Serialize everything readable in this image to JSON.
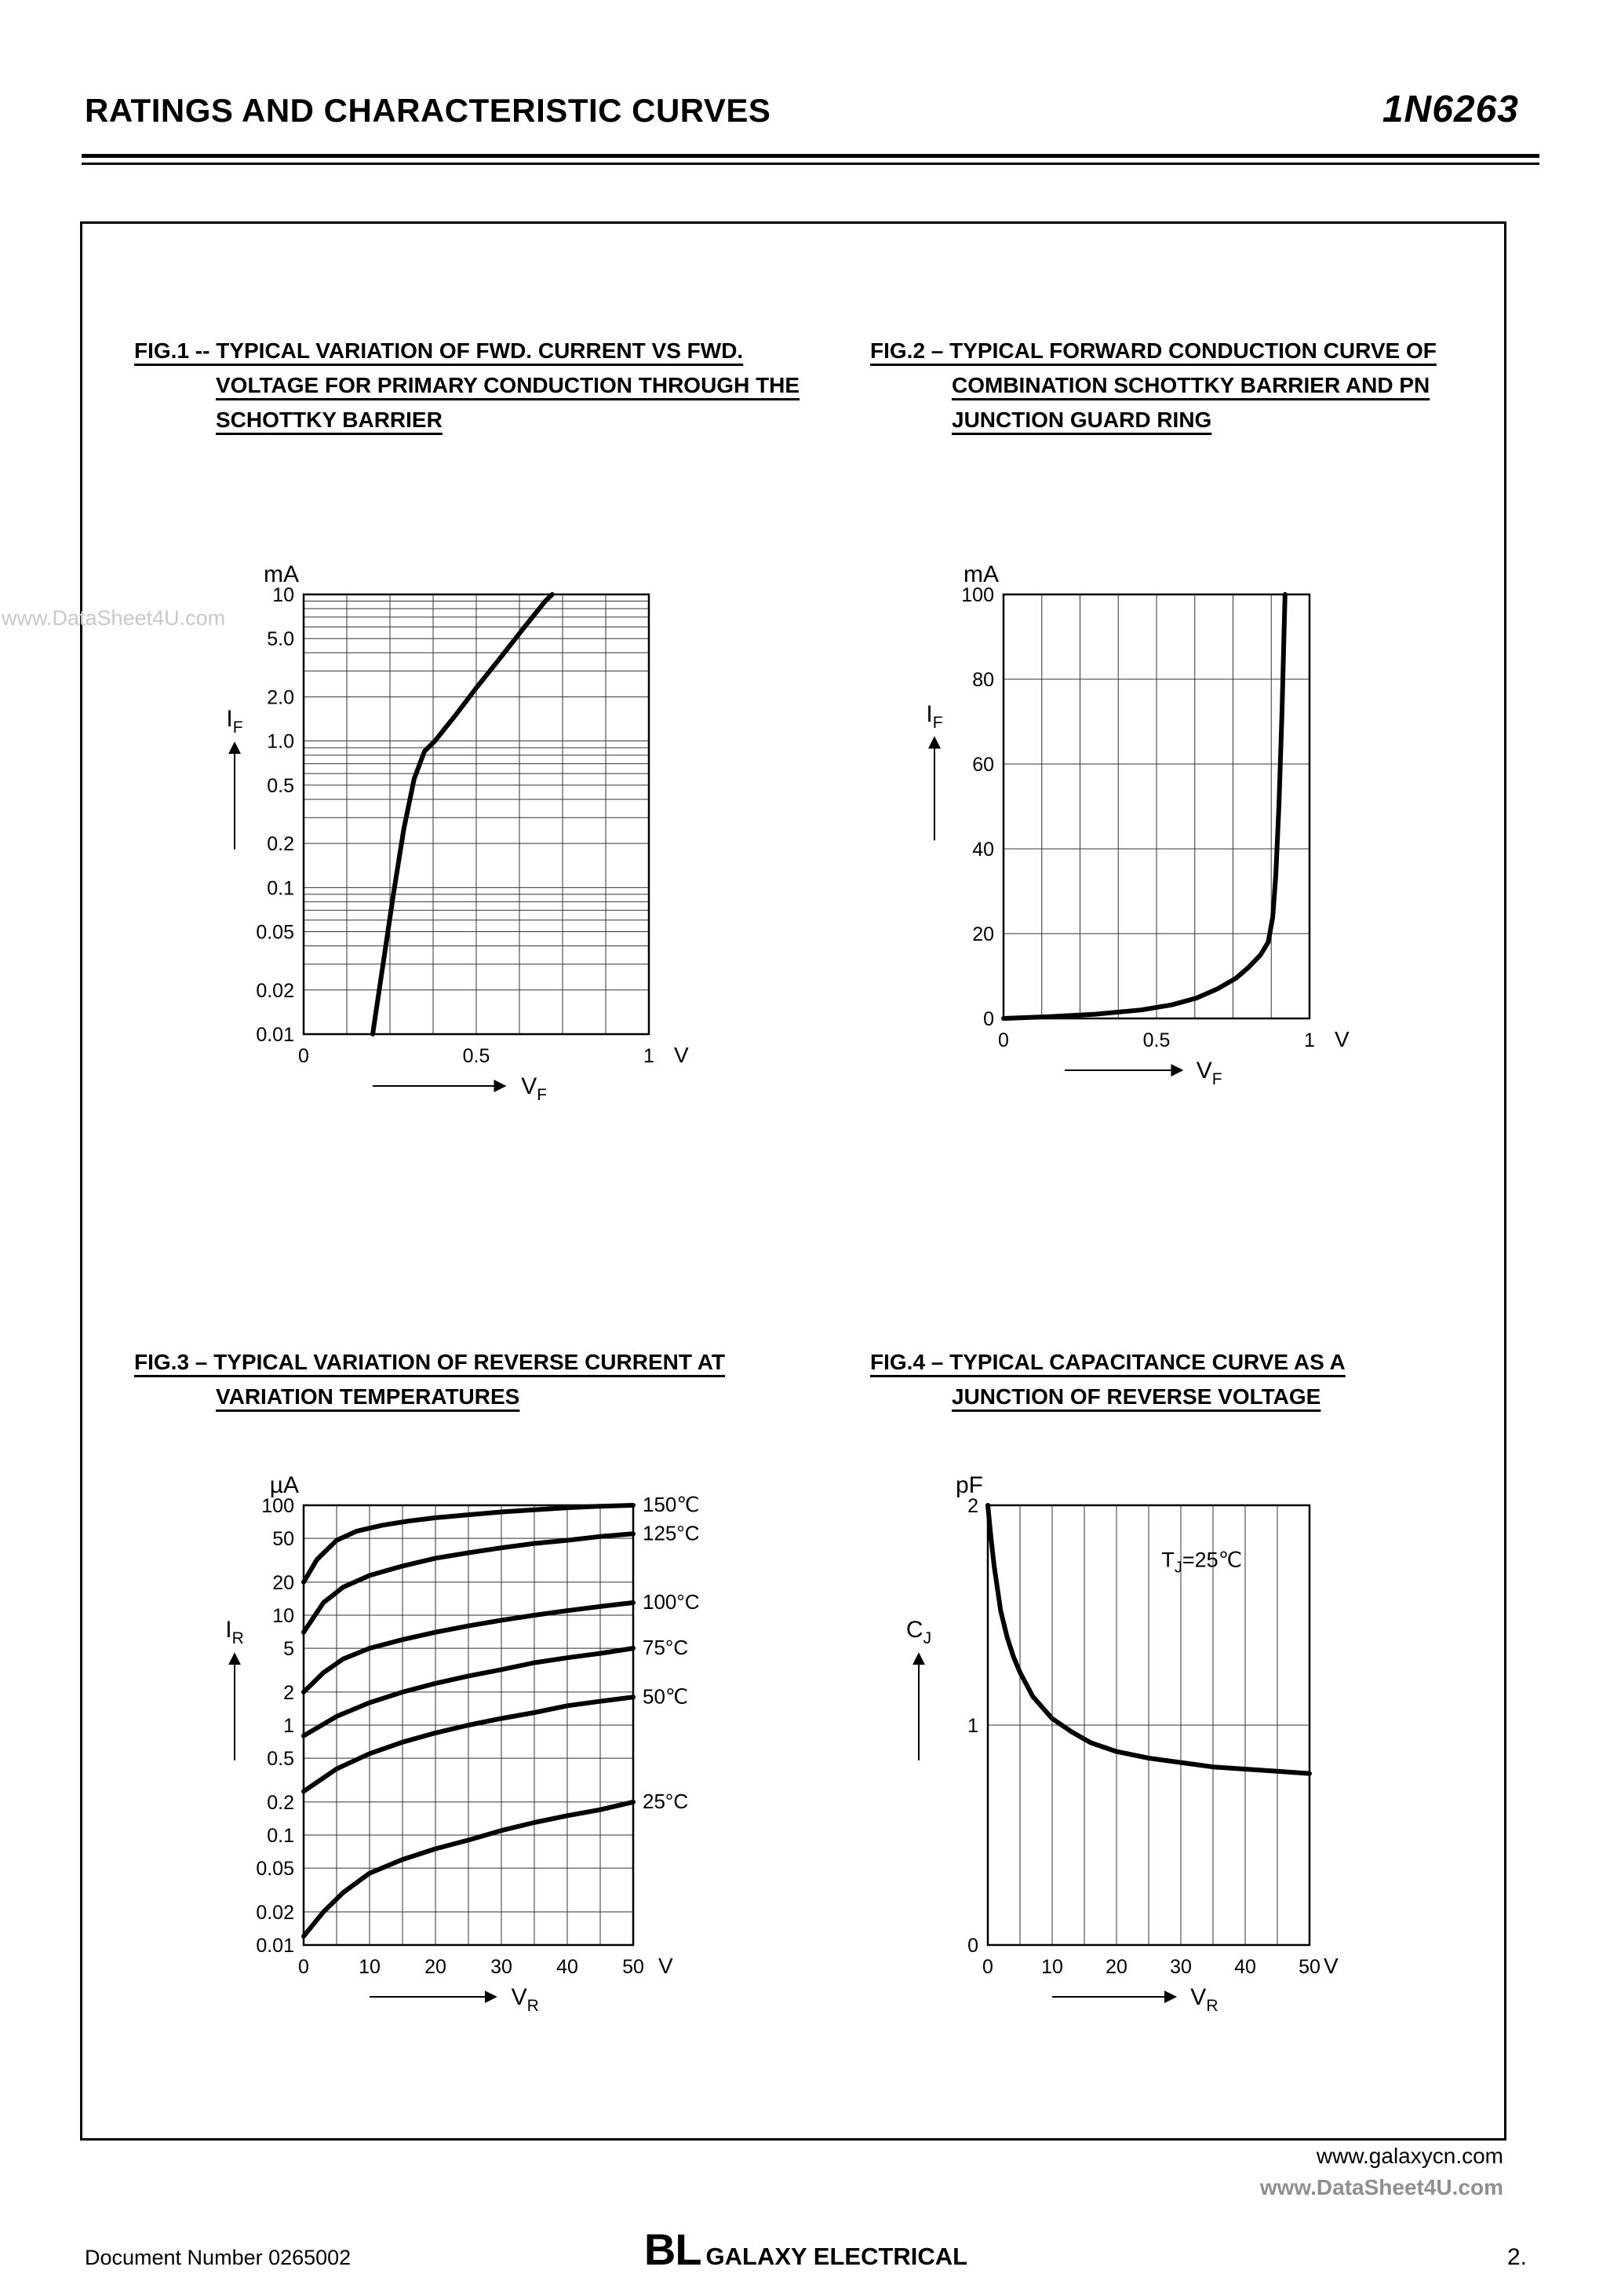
{
  "header": {
    "title": "RATINGS AND CHARACTERISTIC CURVES",
    "part_number": "1N6263"
  },
  "watermark": "www.DataSheet4U.com",
  "footer": {
    "site1": "www.galaxycn.com",
    "site2": "www.DataSheet4U.com",
    "document_number": "Document Number 0265002",
    "brand_initials": "BL",
    "brand_name": "GALAXY ELECTRICAL",
    "page_number": "2."
  },
  "chart_data": [
    {
      "id": "fig1",
      "type": "line",
      "title_lines": [
        "FIG.1 -- TYPICAL VARIATION OF FWD. CURRENT VS FWD.",
        "VOLTAGE FOR PRIMARY CONDUCTION THROUGH THE",
        "SCHOTTKY BARRIER"
      ],
      "x_axis": {
        "scale": "linear",
        "min": 0,
        "max": 1,
        "ticks": [
          0,
          0.5,
          1
        ],
        "tick_labels": [
          "0",
          "0.5",
          "1"
        ],
        "grid_step": 0.125,
        "unit": "V",
        "label": {
          "main": "V",
          "sub": "F"
        }
      },
      "y_axis": {
        "scale": "log",
        "min": 0.01,
        "max": 10,
        "ticks": [
          10,
          5,
          2,
          1,
          0.5,
          0.2,
          0.1,
          0.05,
          0.02,
          0.01
        ],
        "tick_labels": [
          "10",
          "5.0",
          "2.0",
          "1.0",
          "0.5",
          "0.2",
          "0.1",
          "0.05",
          "0.02",
          "0.01"
        ],
        "minor_log_grid": true,
        "unit": "mA",
        "label": {
          "main": "I",
          "sub": "F"
        }
      },
      "series": [
        {
          "name": "schottky-forward-current",
          "points": [
            [
              0.2,
              0.01
            ],
            [
              0.23,
              0.03
            ],
            [
              0.26,
              0.09
            ],
            [
              0.29,
              0.25
            ],
            [
              0.32,
              0.55
            ],
            [
              0.35,
              0.85
            ],
            [
              0.38,
              1.0
            ],
            [
              0.44,
              1.5
            ],
            [
              0.5,
              2.3
            ],
            [
              0.57,
              3.7
            ],
            [
              0.64,
              6.0
            ],
            [
              0.7,
              9.0
            ],
            [
              0.72,
              10
            ]
          ]
        }
      ]
    },
    {
      "id": "fig2",
      "type": "line",
      "title_lines": [
        "FIG.2 – TYPICAL FORWARD CONDUCTION CURVE OF",
        "COMBINATION SCHOTTKY BARRIER AND PN",
        "JUNCTION GUARD RING"
      ],
      "x_axis": {
        "scale": "linear",
        "min": 0,
        "max": 1,
        "ticks": [
          0,
          0.5,
          1
        ],
        "tick_labels": [
          "0",
          "0.5",
          "1"
        ],
        "grid_step": 0.125,
        "unit": "V",
        "label": {
          "main": "V",
          "sub": "F"
        }
      },
      "y_axis": {
        "scale": "linear",
        "min": 0,
        "max": 100,
        "ticks": [
          100,
          80,
          60,
          40,
          20,
          0
        ],
        "tick_labels": [
          "100",
          "80",
          "60",
          "40",
          "20",
          "0"
        ],
        "unit": "mA",
        "label": {
          "main": "I",
          "sub": "F"
        }
      },
      "series": [
        {
          "name": "combined-forward-current",
          "points": [
            [
              0,
              0
            ],
            [
              0.15,
              0.4
            ],
            [
              0.3,
              1.0
            ],
            [
              0.45,
              2.0
            ],
            [
              0.55,
              3.2
            ],
            [
              0.63,
              4.8
            ],
            [
              0.7,
              7.0
            ],
            [
              0.76,
              9.5
            ],
            [
              0.8,
              12
            ],
            [
              0.84,
              15
            ],
            [
              0.865,
              18
            ],
            [
              0.88,
              24
            ],
            [
              0.89,
              34
            ],
            [
              0.9,
              50
            ],
            [
              0.91,
              72
            ],
            [
              0.92,
              100
            ]
          ]
        }
      ]
    },
    {
      "id": "fig3",
      "type": "line",
      "title_lines": [
        "FIG.3 – TYPICAL VARIATION OF REVERSE CURRENT AT",
        "VARIATION TEMPERATURES"
      ],
      "x_axis": {
        "scale": "linear",
        "min": 0,
        "max": 50,
        "ticks": [
          0,
          10,
          20,
          30,
          40,
          50
        ],
        "tick_labels": [
          "0",
          "10",
          "20",
          "30",
          "40",
          "50"
        ],
        "grid_step": 5,
        "unit": "V",
        "label": {
          "main": "V",
          "sub": "R"
        }
      },
      "y_axis": {
        "scale": "log",
        "min": 0.01,
        "max": 100,
        "ticks": [
          100,
          50,
          20,
          10,
          5,
          2,
          1,
          0.5,
          0.2,
          0.1,
          0.05,
          0.02,
          0.01
        ],
        "tick_labels": [
          "100",
          "50",
          "20",
          "10",
          "5",
          "2",
          "1",
          "0.5",
          "0.2",
          "0.1",
          "0.05",
          "0.02",
          "0.01"
        ],
        "minor_log_grid": false,
        "unit": "µA",
        "label": {
          "main": "I",
          "sub": "R"
        }
      },
      "series": [
        {
          "name": "reverse-current-150c",
          "label": "150℃",
          "points": [
            [
              0,
              20
            ],
            [
              2,
              32
            ],
            [
              5,
              48
            ],
            [
              8,
              58
            ],
            [
              12,
              66
            ],
            [
              16,
              72
            ],
            [
              20,
              77
            ],
            [
              25,
              82
            ],
            [
              30,
              87
            ],
            [
              35,
              91
            ],
            [
              40,
              95
            ],
            [
              45,
              98
            ],
            [
              50,
              100
            ]
          ]
        },
        {
          "name": "reverse-current-125c",
          "label": "125°C",
          "points": [
            [
              0,
              7
            ],
            [
              3,
              13
            ],
            [
              6,
              18
            ],
            [
              10,
              23
            ],
            [
              15,
              28
            ],
            [
              20,
              33
            ],
            [
              25,
              37
            ],
            [
              30,
              41
            ],
            [
              35,
              45
            ],
            [
              40,
              48
            ],
            [
              45,
              52
            ],
            [
              50,
              55
            ]
          ]
        },
        {
          "name": "reverse-current-100c",
          "label": "100°C",
          "points": [
            [
              0,
              2
            ],
            [
              3,
              3
            ],
            [
              6,
              4
            ],
            [
              10,
              5
            ],
            [
              15,
              6
            ],
            [
              20,
              7
            ],
            [
              25,
              8
            ],
            [
              30,
              9
            ],
            [
              35,
              10
            ],
            [
              40,
              11
            ],
            [
              45,
              12
            ],
            [
              50,
              13
            ]
          ]
        },
        {
          "name": "reverse-current-75c",
          "label": "75°C",
          "points": [
            [
              0,
              0.8
            ],
            [
              5,
              1.2
            ],
            [
              10,
              1.6
            ],
            [
              15,
              2.0
            ],
            [
              20,
              2.4
            ],
            [
              25,
              2.8
            ],
            [
              30,
              3.2
            ],
            [
              35,
              3.7
            ],
            [
              40,
              4.1
            ],
            [
              45,
              4.5
            ],
            [
              50,
              5.0
            ]
          ]
        },
        {
          "name": "reverse-current-50c",
          "label": "50℃",
          "points": [
            [
              0,
              0.25
            ],
            [
              5,
              0.4
            ],
            [
              10,
              0.55
            ],
            [
              15,
              0.7
            ],
            [
              20,
              0.85
            ],
            [
              25,
              1.0
            ],
            [
              30,
              1.15
            ],
            [
              35,
              1.3
            ],
            [
              40,
              1.5
            ],
            [
              45,
              1.65
            ],
            [
              50,
              1.8
            ]
          ]
        },
        {
          "name": "reverse-current-25c",
          "label": "25°C",
          "points": [
            [
              0,
              0.012
            ],
            [
              3,
              0.02
            ],
            [
              6,
              0.03
            ],
            [
              10,
              0.045
            ],
            [
              15,
              0.06
            ],
            [
              20,
              0.075
            ],
            [
              25,
              0.09
            ],
            [
              30,
              0.11
            ],
            [
              35,
              0.13
            ],
            [
              40,
              0.15
            ],
            [
              45,
              0.17
            ],
            [
              50,
              0.2
            ]
          ]
        }
      ]
    },
    {
      "id": "fig4",
      "type": "line",
      "title_lines": [
        "FIG.4 – TYPICAL CAPACITANCE CURVE AS A",
        "JUNCTION OF REVERSE VOLTAGE"
      ],
      "x_axis": {
        "scale": "linear",
        "min": 0,
        "max": 50,
        "ticks": [
          0,
          10,
          20,
          30,
          40,
          50
        ],
        "tick_labels": [
          "0",
          "10",
          "20",
          "30",
          "40",
          "50"
        ],
        "grid_step": 5,
        "unit": "V",
        "label": {
          "main": "V",
          "sub": "R"
        }
      },
      "y_axis": {
        "scale": "linear",
        "min": 0,
        "max": 2,
        "ticks": [
          2,
          1,
          0
        ],
        "tick_labels": [
          "2",
          "1",
          "0"
        ],
        "unit": "pF",
        "label": {
          "main": "C",
          "sub": "J"
        }
      },
      "series": [
        {
          "name": "junction-capacitance",
          "points": [
            [
              0,
              2.0
            ],
            [
              0.5,
              1.85
            ],
            [
              1,
              1.72
            ],
            [
              2,
              1.52
            ],
            [
              3,
              1.4
            ],
            [
              4,
              1.31
            ],
            [
              5,
              1.24
            ],
            [
              7,
              1.13
            ],
            [
              10,
              1.03
            ],
            [
              13,
              0.97
            ],
            [
              16,
              0.92
            ],
            [
              20,
              0.88
            ],
            [
              25,
              0.85
            ],
            [
              30,
              0.83
            ],
            [
              35,
              0.81
            ],
            [
              40,
              0.8
            ],
            [
              45,
              0.79
            ],
            [
              50,
              0.78
            ]
          ]
        }
      ],
      "annotations": [
        {
          "x": 27,
          "y": 1.72,
          "pre": "T",
          "sub": "J",
          "post": "=25℃"
        }
      ]
    }
  ]
}
